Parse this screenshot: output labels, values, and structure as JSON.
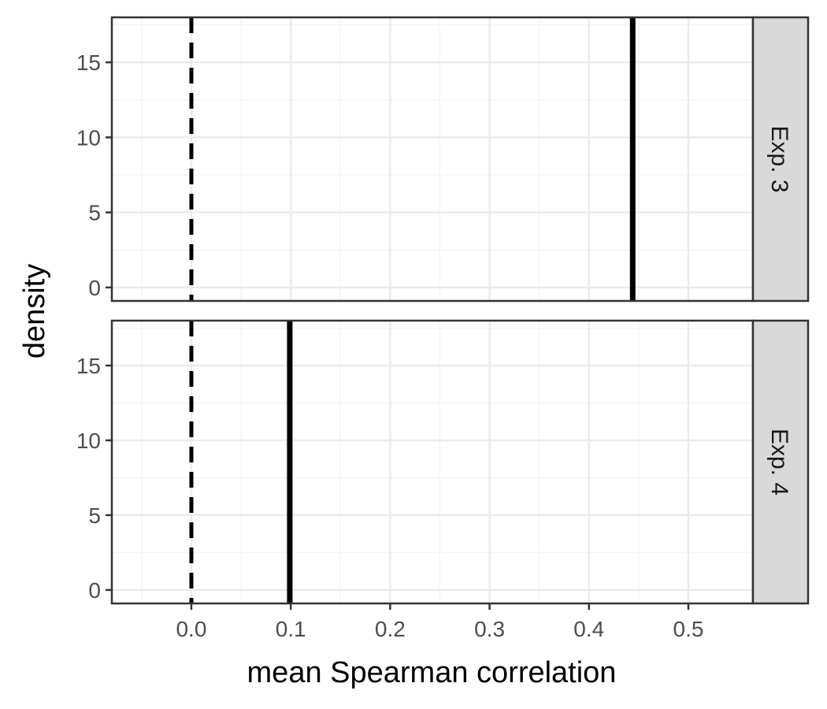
{
  "chart_data": {
    "type": "faceted-vline",
    "xlabel": "mean Spearman correlation",
    "ylabel": "density",
    "xlim": [
      -0.08,
      0.565
    ],
    "ylim": [
      -0.9,
      18
    ],
    "x_ticks": [
      0.0,
      0.1,
      0.2,
      0.3,
      0.4,
      0.5
    ],
    "x_tick_labels": [
      "0.0",
      "0.1",
      "0.2",
      "0.3",
      "0.4",
      "0.5"
    ],
    "y_ticks": [
      0,
      5,
      10,
      15
    ],
    "y_tick_labels": [
      "0",
      "5",
      "10",
      "15"
    ],
    "grid": true,
    "reference_line": {
      "x": 0.0,
      "style": "dashed",
      "color": "#000000"
    },
    "panels": [
      {
        "label": "Exp. 3",
        "observed_x": 0.444
      },
      {
        "label": "Exp. 4",
        "observed_x": 0.099
      }
    ],
    "colors": {
      "strip_fill": "#d9d9d9",
      "grid_major": "#ebebeb",
      "grid_minor": "#f5f5f5",
      "panel_border": "#333333",
      "line": "#000000"
    }
  }
}
